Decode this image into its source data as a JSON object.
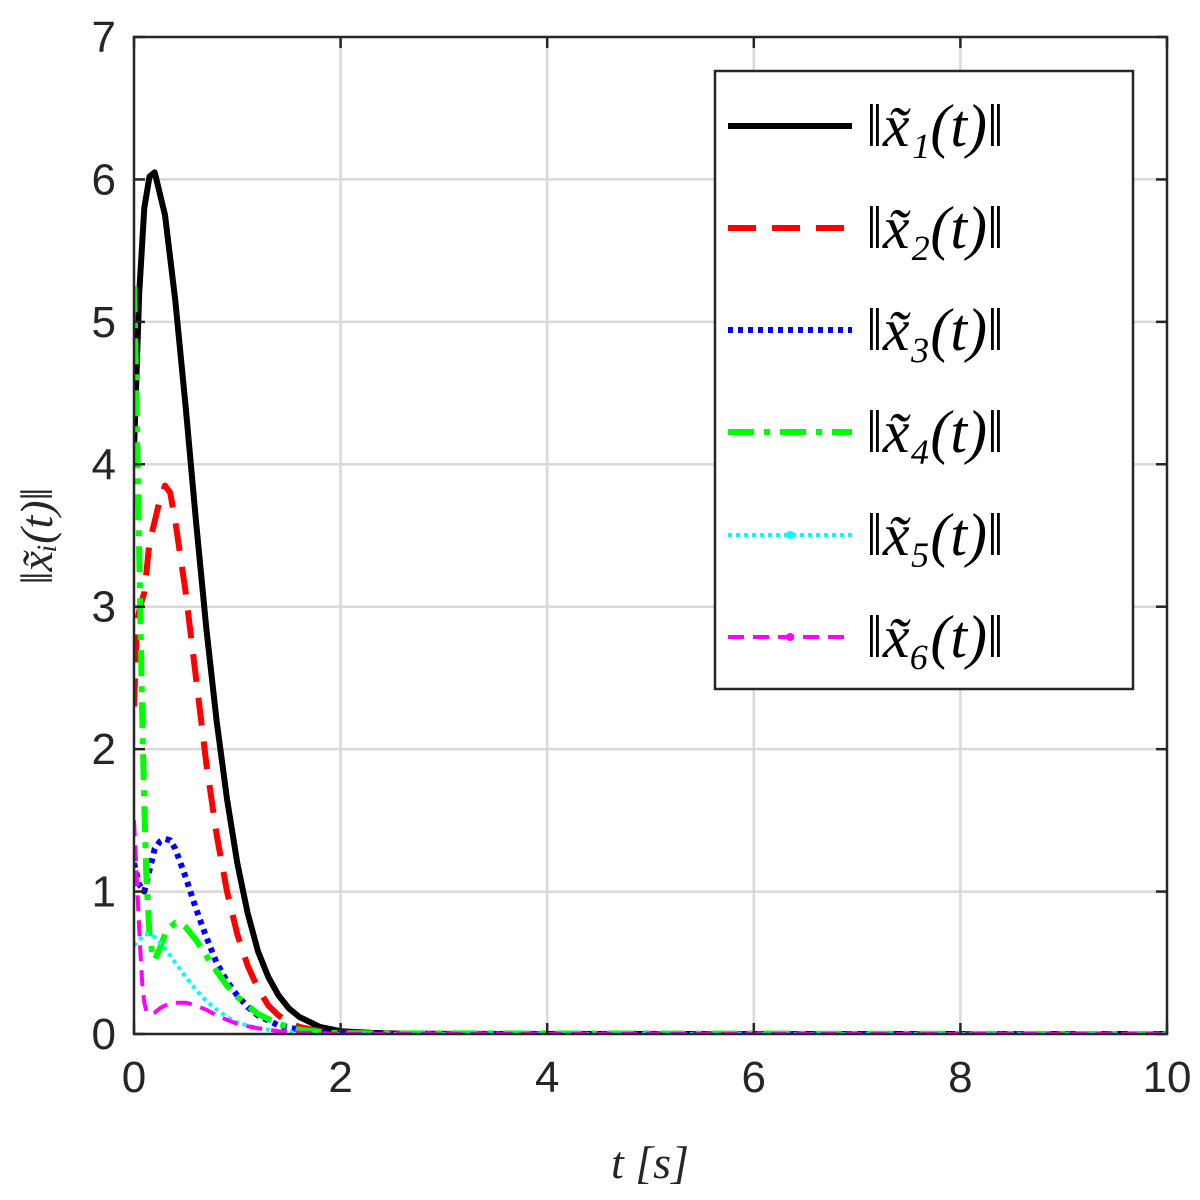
{
  "chart_data": {
    "type": "line",
    "title": "",
    "xlabel": "t [s]",
    "ylabel": "‖x̃ᵢ(t)‖",
    "xlim": [
      0,
      10
    ],
    "ylim": [
      0,
      7
    ],
    "xticks": [
      0,
      2,
      4,
      6,
      8,
      10
    ],
    "yticks": [
      0,
      1,
      2,
      3,
      4,
      5,
      6,
      7
    ],
    "xtick_labels": [
      "0",
      "2",
      "4",
      "6",
      "8",
      "10"
    ],
    "ytick_labels": [
      "0",
      "1",
      "2",
      "3",
      "4",
      "5",
      "6",
      "7"
    ],
    "grid": true,
    "legend_position": "top-right",
    "series": [
      {
        "name": "‖x̃₁(t)‖",
        "color": "#000000",
        "style": "solid",
        "x": [
          0,
          0.05,
          0.1,
          0.15,
          0.2,
          0.3,
          0.4,
          0.5,
          0.6,
          0.7,
          0.8,
          0.9,
          1.0,
          1.1,
          1.2,
          1.3,
          1.4,
          1.5,
          1.6,
          1.8,
          2.0,
          2.3,
          2.6,
          3.0,
          4.0,
          10
        ],
        "y": [
          4.1,
          5.2,
          5.8,
          6.02,
          6.05,
          5.75,
          5.15,
          4.4,
          3.6,
          2.85,
          2.2,
          1.65,
          1.2,
          0.85,
          0.58,
          0.4,
          0.27,
          0.18,
          0.12,
          0.05,
          0.02,
          0.008,
          0.003,
          0.001,
          0,
          0
        ]
      },
      {
        "name": "‖x̃₂(t)‖",
        "color": "#ff0000",
        "style": "dashed",
        "x": [
          0,
          0.03,
          0.06,
          0.1,
          0.15,
          0.2,
          0.25,
          0.3,
          0.35,
          0.4,
          0.5,
          0.6,
          0.7,
          0.8,
          0.9,
          1.0,
          1.1,
          1.2,
          1.3,
          1.4,
          1.5,
          1.6,
          1.8,
          2.0,
          2.5,
          3.0,
          10
        ],
        "y": [
          2.3,
          2.9,
          3.0,
          3.1,
          3.45,
          3.6,
          3.75,
          3.85,
          3.8,
          3.6,
          3.1,
          2.5,
          1.9,
          1.4,
          1.0,
          0.7,
          0.48,
          0.32,
          0.2,
          0.13,
          0.08,
          0.05,
          0.02,
          0.01,
          0.002,
          0,
          0
        ]
      },
      {
        "name": "‖x̃₃(t)‖",
        "color": "#0000ff",
        "style": "dotted",
        "x": [
          0,
          0.05,
          0.1,
          0.15,
          0.2,
          0.25,
          0.3,
          0.35,
          0.4,
          0.5,
          0.6,
          0.7,
          0.8,
          0.9,
          1.0,
          1.1,
          1.2,
          1.4,
          1.6,
          1.8,
          2.0,
          2.5,
          10
        ],
        "y": [
          1.2,
          1.05,
          1.0,
          1.15,
          1.3,
          1.35,
          1.37,
          1.36,
          1.3,
          1.1,
          0.88,
          0.68,
          0.5,
          0.37,
          0.27,
          0.19,
          0.13,
          0.06,
          0.03,
          0.012,
          0.005,
          0.001,
          0
        ]
      },
      {
        "name": "‖x̃₄(t)‖",
        "color": "#00ff00",
        "style": "dashdot",
        "x": [
          0,
          0.02,
          0.04,
          0.06,
          0.08,
          0.1,
          0.12,
          0.15,
          0.18,
          0.2,
          0.25,
          0.3,
          0.35,
          0.4,
          0.45,
          0.5,
          0.6,
          0.7,
          0.8,
          0.9,
          1.0,
          1.2,
          1.4,
          1.6,
          1.8,
          2.0,
          10
        ],
        "y": [
          5.25,
          4.6,
          3.8,
          3.0,
          2.2,
          1.6,
          1.1,
          0.7,
          0.55,
          0.52,
          0.6,
          0.7,
          0.75,
          0.78,
          0.78,
          0.75,
          0.66,
          0.55,
          0.44,
          0.34,
          0.26,
          0.14,
          0.07,
          0.03,
          0.015,
          0.005,
          0
        ]
      },
      {
        "name": "‖x̃₅(t)‖",
        "color": "#00ffff",
        "style": "dotted-marker",
        "x": [
          0,
          0.05,
          0.1,
          0.15,
          0.2,
          0.3,
          0.4,
          0.5,
          0.6,
          0.7,
          0.8,
          0.9,
          1.0,
          1.2,
          1.4,
          1.6,
          1.8,
          2.0,
          10
        ],
        "y": [
          0.62,
          0.66,
          0.7,
          0.7,
          0.68,
          0.6,
          0.5,
          0.4,
          0.31,
          0.23,
          0.17,
          0.12,
          0.08,
          0.04,
          0.02,
          0.008,
          0.003,
          0.001,
          0
        ]
      },
      {
        "name": "‖x̃₆(t)‖",
        "color": "#ff00ff",
        "style": "dashed-marker",
        "x": [
          0,
          0.02,
          0.04,
          0.06,
          0.08,
          0.1,
          0.12,
          0.15,
          0.2,
          0.25,
          0.3,
          0.4,
          0.5,
          0.6,
          0.7,
          0.8,
          0.9,
          1.0,
          1.2,
          1.4,
          1.6,
          1.8,
          2.0,
          2.5,
          10
        ],
        "y": [
          1.5,
          1.2,
          0.9,
          0.6,
          0.35,
          0.22,
          0.16,
          0.14,
          0.15,
          0.18,
          0.2,
          0.22,
          0.22,
          0.2,
          0.17,
          0.13,
          0.1,
          0.07,
          0.04,
          0.02,
          0.01,
          0.005,
          0.002,
          0.001,
          0
        ]
      }
    ]
  }
}
